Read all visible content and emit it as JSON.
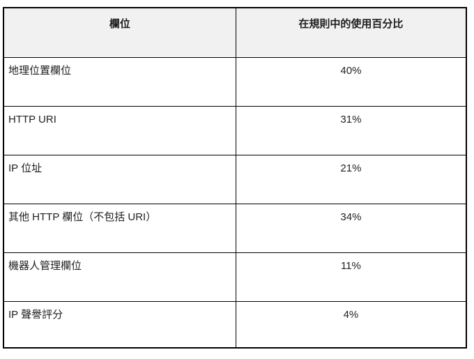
{
  "page": {
    "background": "#ffffff"
  },
  "table": {
    "headers": [
      {
        "label": "欄位"
      },
      {
        "label": "在規則中的使用百分比"
      }
    ],
    "rows": [
      {
        "field": "地理位置欄位",
        "percent": "40%"
      },
      {
        "field": "HTTP URI",
        "percent": "31%"
      },
      {
        "field": "IP 位址",
        "percent": "21%"
      },
      {
        "field": "其他 HTTP 欄位（不包括 URI）",
        "percent": "34%"
      },
      {
        "field": "機器人管理欄位",
        "percent": "11%"
      },
      {
        "field": "IP 聲譽評分",
        "percent": "4%"
      }
    ],
    "style": {
      "header_bg": "#f1f1f1",
      "border_color": "#000000",
      "text_color": "#1f1f1f"
    }
  },
  "chart_data": {
    "type": "table",
    "columns": [
      "欄位",
      "在規則中的使用百分比"
    ],
    "categories": [
      "地理位置欄位",
      "HTTP URI",
      "IP 位址",
      "其他 HTTP 欄位（不包括 URI）",
      "機器人管理欄位",
      "IP 聲譽評分"
    ],
    "values": [
      40,
      31,
      21,
      34,
      11,
      4
    ],
    "unit": "%"
  }
}
